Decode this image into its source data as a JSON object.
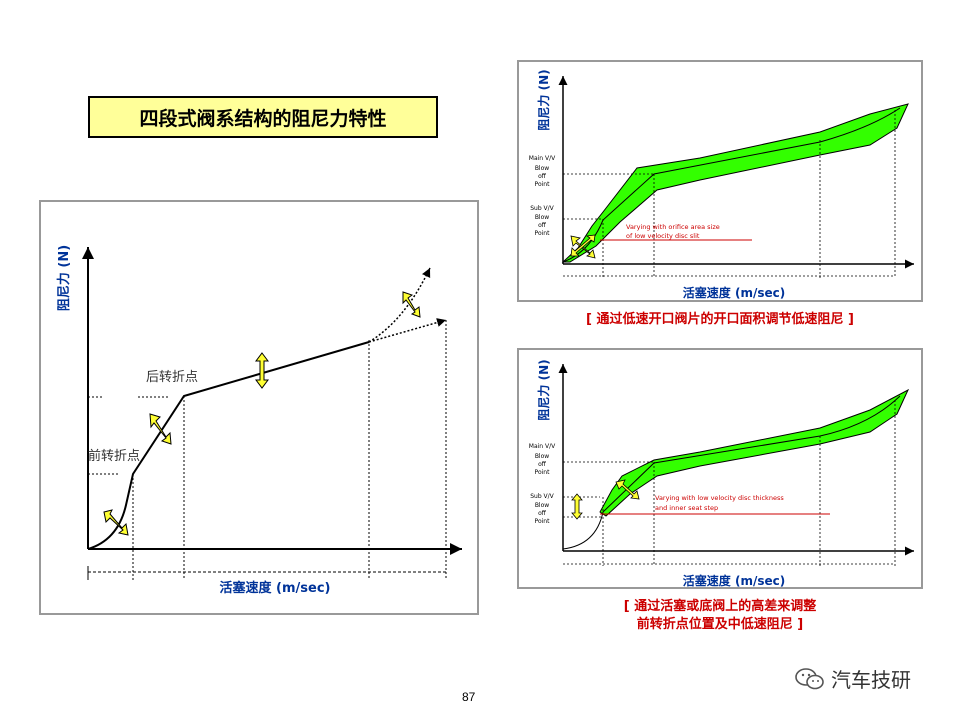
{
  "slide_title": "四段式阀系结构的阻尼力特性",
  "left_panel": {
    "y_axis_label": "阻尼力 (N)",
    "x_axis_label": "活塞速度 (m/sec)",
    "front_point_label": "前转折点",
    "rear_point_label": "后转折点"
  },
  "top_right_panel": {
    "y_axis_label": "阻尼力 (N)",
    "x_axis_label": "活塞速度 (m/sec)",
    "main_label": [
      "Main V/V",
      "Blow",
      "off",
      "Point"
    ],
    "sub_label": [
      "Sub V/V",
      "Blow",
      "off",
      "Point"
    ],
    "annotation_line1": "Varying with orifice area size",
    "annotation_line2": "of low velocity disc slit",
    "caption": "[ 通过低速开口阀片的开口面积调节低速阻尼 ]"
  },
  "bottom_right_panel": {
    "y_axis_label": "阻尼力 (N)",
    "x_axis_label": "活塞速度 (m/sec)",
    "main_label": [
      "Main V/V",
      "Blow",
      "off",
      "Point"
    ],
    "sub_label": [
      "Sub V/V",
      "Blow",
      "off",
      "Point"
    ],
    "annotation_line1": "Varying with low velocity disc thickness",
    "annotation_line2": "and inner seat step",
    "caption_line1": "[ 通过活塞或底阀上的高差来调整",
    "caption_line2": "前转折点位置及中低速阻尼 ]"
  },
  "page_number": "87",
  "logo_text": "汽车技研",
  "colors": {
    "title_bg": "#ffff99",
    "band_green": "#33ff00",
    "arrow_yellow": "#ffff33",
    "axis_label_blue": "#003399",
    "caption_red": "#cc0000"
  }
}
